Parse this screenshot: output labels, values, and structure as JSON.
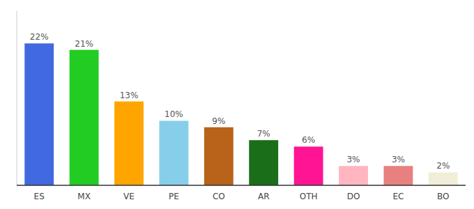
{
  "chart_data": {
    "type": "bar",
    "categories": [
      "ES",
      "MX",
      "VE",
      "PE",
      "CO",
      "AR",
      "OTH",
      "DO",
      "EC",
      "BO"
    ],
    "values": [
      22,
      21,
      13,
      10,
      9,
      7,
      6,
      3,
      3,
      2
    ],
    "value_labels": [
      "22%",
      "21%",
      "13%",
      "10%",
      "9%",
      "7%",
      "6%",
      "3%",
      "3%",
      "2%"
    ],
    "colors": [
      "#4169e1",
      "#22cc22",
      "#ffa500",
      "#87ceeb",
      "#b8621a",
      "#1a6e1a",
      "#ff1493",
      "#ffb6c1",
      "#e88080",
      "#f0eed8"
    ],
    "ylim": [
      0,
      27
    ],
    "data_labels": true,
    "tick_labels": "x",
    "grid": false
  }
}
